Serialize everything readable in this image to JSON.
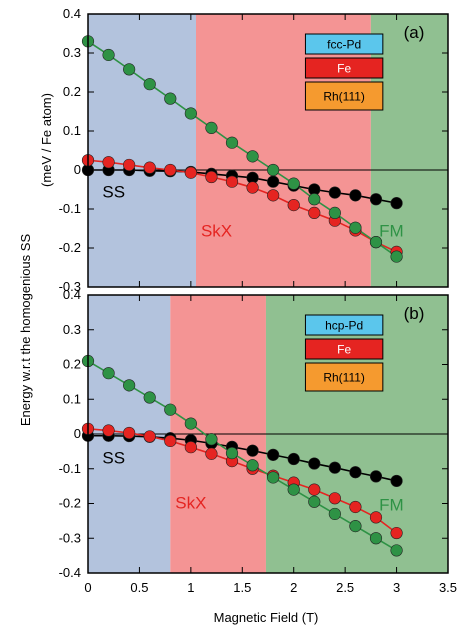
{
  "figure": {
    "ylabel": "Energy w.r.t the homogenious SS",
    "ylabel_unit": "(meV / Fe atom)",
    "xlabel": "Magnetic Field (T)"
  },
  "colors": {
    "SS_region": "#b3c3dd",
    "SkX_region": "#f49494",
    "FM_region": "#90c091",
    "SS_series": "#000000",
    "SkX_series": "#e52421",
    "FM_series": "#2e9245",
    "legend_top": "#5bc6ec",
    "legend_mid": "#e52421",
    "legend_bot": "#f59a2f"
  },
  "chart_data": [
    {
      "type": "line",
      "panel": "(a)",
      "xlim": [
        0,
        3.5
      ],
      "ylim": [
        -0.3,
        0.4
      ],
      "xticks": [
        "0",
        "0.5",
        "1",
        "1.5",
        "2",
        "2.5",
        "3",
        "3.5"
      ],
      "yticks": [
        "0.4",
        "0.3",
        "0.2",
        "0.1",
        "0",
        "-0.1",
        "-0.2",
        "-0.3"
      ],
      "regions": [
        {
          "name": "SS",
          "from": 0,
          "to": 1.05,
          "color": "#b3c3dd"
        },
        {
          "name": "SkX",
          "from": 1.05,
          "to": 2.75,
          "color": "#f49494"
        },
        {
          "name": "FM",
          "from": 2.75,
          "to": 3.5,
          "color": "#90c091"
        }
      ],
      "labels": [
        {
          "text": "SS",
          "x": 0.25,
          "y": -0.07,
          "color": "#000000"
        },
        {
          "text": "SkX",
          "x": 1.25,
          "y": -0.17,
          "color": "#e52421"
        },
        {
          "text": "FM",
          "x": 2.95,
          "y": -0.17,
          "color": "#2e9245"
        }
      ],
      "legend": [
        "fcc-Pd",
        "Fe",
        "Rh(111)"
      ],
      "series": [
        {
          "label": "SS",
          "color": "#000000",
          "x": [
            0,
            0.2,
            0.4,
            0.6,
            0.8,
            1.0,
            1.2,
            1.4,
            1.6,
            1.8,
            2.0,
            2.2,
            2.4,
            2.6,
            2.8,
            3.0
          ],
          "y": [
            0,
            0,
            0,
            -0.002,
            -0.003,
            -0.005,
            -0.01,
            -0.015,
            -0.02,
            -0.03,
            -0.04,
            -0.05,
            -0.058,
            -0.065,
            -0.075,
            -0.085
          ]
        },
        {
          "label": "SkX",
          "color": "#e52421",
          "x": [
            0,
            0.2,
            0.4,
            0.6,
            0.8,
            1.0,
            1.2,
            1.4,
            1.6,
            1.8,
            2.0,
            2.2,
            2.4,
            2.6,
            2.8,
            3.0
          ],
          "y": [
            0.025,
            0.02,
            0.013,
            0.006,
            0,
            -0.007,
            -0.018,
            -0.03,
            -0.045,
            -0.065,
            -0.09,
            -0.11,
            -0.13,
            -0.155,
            -0.185,
            -0.21
          ]
        },
        {
          "label": "FM",
          "color": "#2e9245",
          "x": [
            0,
            0.2,
            0.4,
            0.6,
            0.8,
            1.0,
            1.2,
            1.4,
            1.6,
            1.8,
            2.0,
            2.2,
            2.4,
            2.6,
            2.8,
            3.0
          ],
          "y": [
            0.33,
            0.295,
            0.258,
            0.22,
            0.183,
            0.145,
            0.108,
            0.07,
            0.035,
            0,
            -0.035,
            -0.075,
            -0.11,
            -0.148,
            -0.185,
            -0.222
          ]
        }
      ]
    },
    {
      "type": "line",
      "panel": "(b)",
      "xlim": [
        0,
        3.5
      ],
      "ylim": [
        -0.4,
        0.4
      ],
      "xticks": [
        "0",
        "0.5",
        "1",
        "1.5",
        "2",
        "2.5",
        "3",
        "3.5"
      ],
      "yticks": [
        "0.4",
        "0.3",
        "0.2",
        "0.1",
        "0",
        "-0.1",
        "-0.2",
        "-0.3",
        "-0.4"
      ],
      "regions": [
        {
          "name": "SS",
          "from": 0,
          "to": 0.8,
          "color": "#b3c3dd"
        },
        {
          "name": "SkX",
          "from": 0.8,
          "to": 1.73,
          "color": "#f49494"
        },
        {
          "name": "FM",
          "from": 1.73,
          "to": 3.5,
          "color": "#90c091"
        }
      ],
      "labels": [
        {
          "text": "SS",
          "x": 0.25,
          "y": -0.085,
          "color": "#000000"
        },
        {
          "text": "SkX",
          "x": 1.0,
          "y": -0.215,
          "color": "#e52421"
        },
        {
          "text": "FM",
          "x": 2.95,
          "y": -0.22,
          "color": "#2e9245"
        }
      ],
      "legend": [
        "hcp-Pd",
        "Fe",
        "Rh(111)"
      ],
      "series": [
        {
          "label": "SS",
          "color": "#000000",
          "x": [
            0,
            0.2,
            0.4,
            0.6,
            0.8,
            1.0,
            1.2,
            1.4,
            1.6,
            1.8,
            2.0,
            2.2,
            2.4,
            2.6,
            2.8,
            3.0
          ],
          "y": [
            -0.005,
            -0.005,
            -0.006,
            -0.008,
            -0.012,
            -0.018,
            -0.027,
            -0.037,
            -0.048,
            -0.06,
            -0.072,
            -0.085,
            -0.097,
            -0.11,
            -0.122,
            -0.135
          ]
        },
        {
          "label": "SkX",
          "color": "#e52421",
          "x": [
            0,
            0.2,
            0.4,
            0.6,
            0.8,
            1.0,
            1.2,
            1.4,
            1.6,
            1.8,
            2.0,
            2.2,
            2.4,
            2.6,
            2.8,
            3.0
          ],
          "y": [
            0.015,
            0.01,
            0.003,
            -0.007,
            -0.02,
            -0.038,
            -0.057,
            -0.078,
            -0.1,
            -0.12,
            -0.14,
            -0.16,
            -0.185,
            -0.21,
            -0.24,
            -0.285
          ]
        },
        {
          "label": "FM",
          "color": "#2e9245",
          "x": [
            0,
            0.2,
            0.4,
            0.6,
            0.8,
            1.0,
            1.2,
            1.4,
            1.6,
            1.8,
            2.0,
            2.2,
            2.4,
            2.6,
            2.8,
            3.0
          ],
          "y": [
            0.21,
            0.175,
            0.14,
            0.105,
            0.07,
            0.03,
            -0.015,
            -0.055,
            -0.09,
            -0.125,
            -0.16,
            -0.195,
            -0.23,
            -0.265,
            -0.3,
            -0.335
          ]
        }
      ]
    }
  ]
}
